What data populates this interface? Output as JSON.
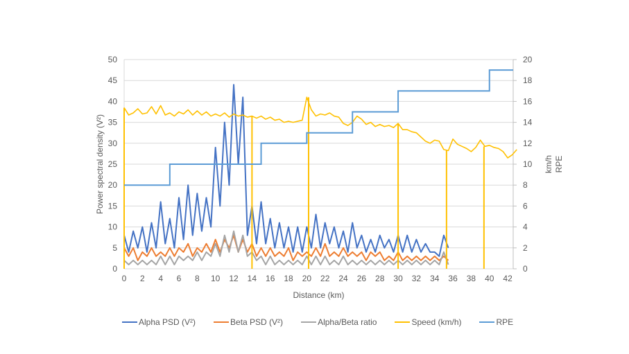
{
  "chart_data": {
    "type": "line",
    "title": "",
    "xlabel": "Distance (km)",
    "ylabel": "Power spectral density (V²)",
    "y2label": [
      "km/h",
      "RPE"
    ],
    "xlim": [
      0,
      42.6
    ],
    "ylim": [
      0,
      50
    ],
    "y2lim": [
      0,
      20
    ],
    "x_ticks": [
      "0",
      "2",
      "4",
      "6",
      "8",
      "10",
      "12",
      "14",
      "16",
      "18",
      "20",
      "22",
      "24",
      "26",
      "28",
      "30",
      "32",
      "34",
      "36",
      "38",
      "40",
      "42"
    ],
    "y_ticks": [
      "0",
      "5",
      "10",
      "15",
      "20",
      "25",
      "30",
      "35",
      "40",
      "45",
      "50"
    ],
    "y2_ticks": [
      "0",
      "2",
      "4",
      "6",
      "8",
      "10",
      "12",
      "14",
      "16",
      "18",
      "20"
    ],
    "grid": true,
    "legend_position": "bottom",
    "psd_x_step_km": 0.5,
    "series": [
      {
        "name": "Alpha PSD (V²)",
        "color": "#4472C4",
        "axis": "left",
        "values": [
          8,
          4,
          9,
          5,
          10,
          4,
          11,
          5,
          16,
          6,
          12,
          5,
          17,
          7,
          20,
          8,
          18,
          9,
          17,
          10,
          29,
          15,
          35,
          20,
          44,
          25,
          41,
          8,
          15,
          6,
          16,
          6,
          12,
          5,
          11,
          5,
          10,
          4,
          10,
          4,
          10,
          5,
          13,
          5,
          11,
          6,
          10,
          5,
          9,
          4,
          11,
          5,
          8,
          4,
          7,
          4,
          8,
          5,
          7,
          4,
          8,
          4,
          8,
          4,
          7,
          4,
          6,
          4,
          4,
          3,
          8,
          5
        ]
      },
      {
        "name": "Beta PSD (V²)",
        "color": "#ED7D31",
        "axis": "left",
        "values": [
          5,
          3,
          5,
          2,
          4,
          3,
          5,
          3,
          4,
          3,
          5,
          3,
          5,
          4,
          6,
          3,
          5,
          4,
          6,
          4,
          7,
          4,
          7,
          5,
          8,
          4,
          7,
          4,
          6,
          3,
          5,
          3,
          5,
          3,
          4,
          3,
          5,
          2,
          4,
          3,
          4,
          3,
          5,
          3,
          6,
          3,
          4,
          3,
          5,
          3,
          4,
          3,
          4,
          2,
          4,
          3,
          4,
          2,
          3,
          2,
          4,
          2,
          3,
          2,
          3,
          2,
          3,
          2,
          3,
          2,
          3,
          2
        ]
      },
      {
        "name": "Alpha/Beta ratio",
        "color": "#A5A5A5",
        "axis": "left",
        "values": [
          2,
          1,
          2,
          1,
          2,
          1,
          2,
          1,
          3,
          1,
          3,
          1,
          3,
          2,
          3,
          2,
          4,
          2,
          4,
          3,
          6,
          3,
          8,
          4,
          9,
          4,
          8,
          3,
          4,
          2,
          3,
          1,
          3,
          1,
          2,
          1,
          2,
          1,
          2,
          1,
          3,
          1,
          3,
          1,
          3,
          1,
          2,
          1,
          3,
          1,
          2,
          1,
          2,
          1,
          2,
          1,
          2,
          1,
          2,
          1,
          2,
          1,
          2,
          1,
          2,
          1,
          2,
          1,
          2,
          1,
          4,
          1
        ]
      },
      {
        "name": "Speed (km/h)",
        "color": "#FFC000",
        "axis": "right",
        "x_step_km": 0.5,
        "values": [
          15.4,
          14.7,
          14.9,
          15.3,
          14.8,
          14.9,
          15.5,
          14.8,
          15.6,
          14.7,
          14.9,
          14.6,
          15.0,
          14.8,
          15.2,
          14.7,
          15.1,
          14.7,
          15.0,
          14.6,
          14.8,
          14.6,
          14.9,
          14.5,
          14.8,
          14.6,
          14.7,
          14.5,
          14.6,
          14.4,
          14.6,
          14.3,
          14.5,
          14.2,
          14.3,
          14.0,
          14.1,
          14.0,
          14.1,
          14.2,
          16.4,
          15.2,
          14.6,
          14.8,
          14.7,
          14.9,
          14.6,
          14.5,
          13.9,
          13.7,
          14.0,
          14.6,
          14.3,
          13.8,
          14.0,
          13.6,
          13.8,
          13.6,
          13.7,
          13.5,
          13.9,
          13.3,
          13.3,
          13.1,
          13.0,
          12.6,
          12.2,
          12.0,
          12.3,
          12.2,
          11.4,
          11.3,
          12.4,
          11.9,
          11.7,
          11.5,
          11.2,
          11.6,
          12.3,
          11.7,
          11.8,
          11.6,
          11.5,
          11.2,
          10.6,
          10.9,
          11.4
        ],
        "dropouts_km": [
          0,
          14,
          20.2,
          30,
          35.3,
          39.4
        ]
      },
      {
        "name": "RPE",
        "color": "#5B9BD5",
        "axis": "right",
        "type": "step",
        "steps": [
          {
            "from": 0,
            "to": 5,
            "value": 8
          },
          {
            "from": 5,
            "to": 15,
            "value": 10
          },
          {
            "from": 15,
            "to": 20,
            "value": 12
          },
          {
            "from": 20,
            "to": 25,
            "value": 13
          },
          {
            "from": 25,
            "to": 30,
            "value": 15
          },
          {
            "from": 30,
            "to": 40,
            "value": 17
          },
          {
            "from": 40,
            "to": 42.6,
            "value": 19
          }
        ]
      }
    ]
  }
}
